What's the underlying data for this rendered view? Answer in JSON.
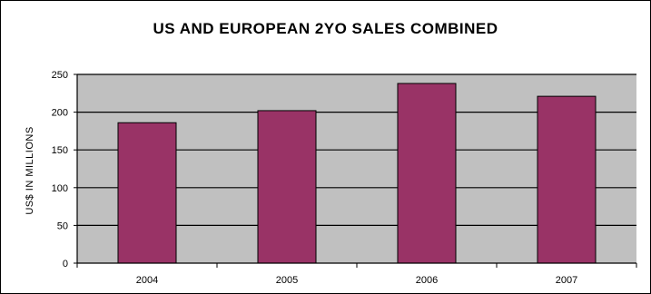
{
  "chart_data": {
    "type": "bar",
    "title": "US AND EUROPEAN 2YO SALES COMBINED",
    "xlabel": "",
    "ylabel": "US$ IN MILLIONS",
    "categories": [
      "2004",
      "2005",
      "2006",
      "2007"
    ],
    "values": [
      186,
      202,
      238,
      221
    ],
    "ylim": [
      0,
      250
    ],
    "yticks": [
      0,
      50,
      100,
      150,
      200,
      250
    ],
    "grid": true,
    "legend": "none",
    "colors": {
      "bar": "#993366",
      "plot_background": "#c0c0c0",
      "gridline": "#000000"
    }
  }
}
